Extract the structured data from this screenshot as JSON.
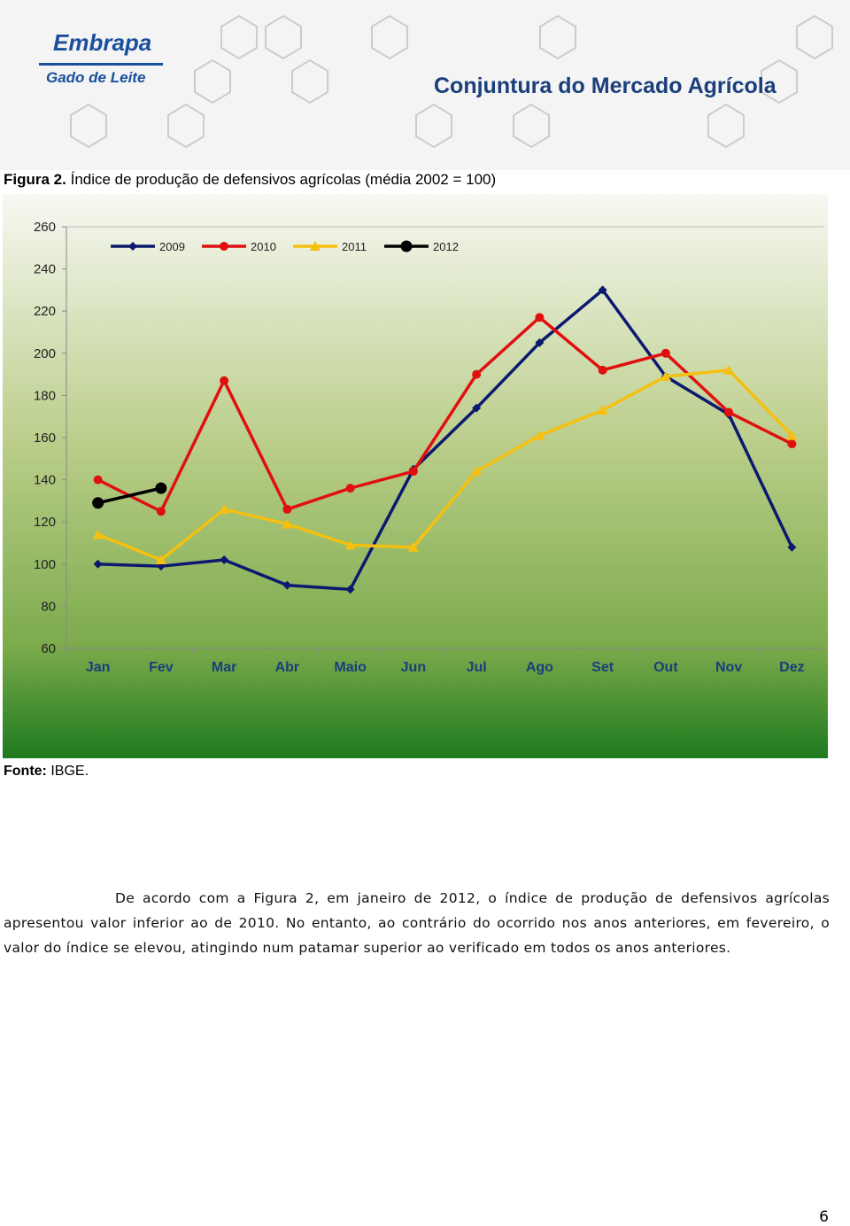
{
  "header": {
    "logo": "Embrapa",
    "unit": "Gado de Leite",
    "publication": "Conjuntura do Mercado Agrícola"
  },
  "figure": {
    "label": "Figura 2.",
    "caption": "Índice de produção de defensivos agrícolas (média 2002 = 100)"
  },
  "chart_data": {
    "type": "line",
    "categories": [
      "Jan",
      "Fev",
      "Mar",
      "Abr",
      "Maio",
      "Jun",
      "Jul",
      "Ago",
      "Set",
      "Out",
      "Nov",
      "Dez"
    ],
    "series": [
      {
        "name": "2009",
        "color": "#0b1a6e",
        "marker": "diamond",
        "values": [
          100,
          99,
          102,
          90,
          88,
          145,
          174,
          205,
          230,
          189,
          171,
          108
        ]
      },
      {
        "name": "2010",
        "color": "#e01010",
        "marker": "circle",
        "values": [
          140,
          125,
          187,
          126,
          136,
          144,
          190,
          217,
          192,
          200,
          172,
          157
        ]
      },
      {
        "name": "2011",
        "color": "#f5c010",
        "marker": "triangle",
        "values": [
          114,
          102,
          126,
          119,
          109,
          108,
          144,
          161,
          173,
          189,
          192,
          161
        ]
      },
      {
        "name": "2012",
        "color": "#000000",
        "marker": "bigcircle",
        "values": [
          129,
          136,
          null,
          null,
          null,
          null,
          null,
          null,
          null,
          null,
          null,
          null
        ]
      }
    ],
    "ylim": [
      60,
      260
    ],
    "yticks": [
      60,
      80,
      100,
      120,
      140,
      160,
      180,
      200,
      220,
      240,
      260
    ],
    "grid": false,
    "legend": "top"
  },
  "source": {
    "label": "Fonte:",
    "text": "IBGE."
  },
  "paragraph": "De acordo com a Figura 2, em janeiro de 2012, o índice de produção de defensivos agrícolas apresentou valor inferior ao de 2010. No entanto, ao contrário do ocorrido nos anos anteriores, em fevereiro, o valor do índice se elevou, atingindo num patamar superior ao verificado em todos os anos anteriores.",
  "page_number": "6"
}
